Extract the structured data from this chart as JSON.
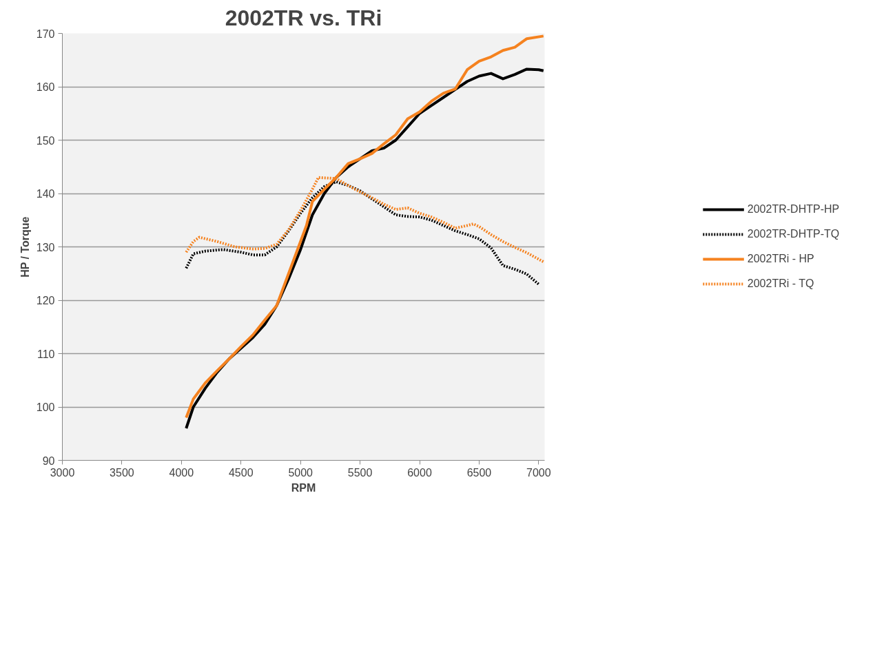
{
  "chart_data": {
    "type": "line",
    "title": "2002TR vs. TRi",
    "xlabel": "RPM",
    "ylabel": "HP / Torque",
    "xlim": [
      3000,
      7050
    ],
    "xticks": [
      3000,
      3500,
      4000,
      4500,
      5000,
      5500,
      6000,
      6500,
      7000
    ],
    "ylim": [
      90,
      170
    ],
    "yticks": [
      90,
      100,
      110,
      120,
      130,
      140,
      150,
      160,
      170
    ],
    "grid": "y",
    "legend": "right",
    "marker": "none",
    "series": [
      {
        "name": "2002TR-DHTP-HP",
        "color": "#000000",
        "line_style": "solid",
        "x": [
          4040,
          4100,
          4200,
          4300,
          4400,
          4500,
          4600,
          4700,
          4800,
          4900,
          5000,
          5100,
          5200,
          5300,
          5400,
          5500,
          5600,
          5700,
          5800,
          5900,
          6000,
          6100,
          6200,
          6300,
          6400,
          6500,
          6600,
          6700,
          6800,
          6900,
          7000,
          7040
        ],
        "values": [
          96,
          100,
          103.5,
          106.5,
          109,
          111,
          113,
          115.5,
          119,
          124,
          129.5,
          136,
          140,
          143,
          145,
          146.5,
          148,
          148.5,
          150,
          152.5,
          155,
          156.5,
          158,
          159.5,
          161,
          162,
          162.5,
          161.5,
          162.3,
          163.3,
          163.2,
          163
        ]
      },
      {
        "name": "2002TR-DHTP-TQ",
        "color": "#000000",
        "line_style": "dotted",
        "x": [
          4040,
          4100,
          4200,
          4350,
          4500,
          4600,
          4700,
          4800,
          4900,
          5000,
          5100,
          5200,
          5300,
          5400,
          5500,
          5600,
          5700,
          5800,
          5900,
          6000,
          6100,
          6200,
          6300,
          6400,
          6500,
          6600,
          6700,
          6800,
          6900,
          7000
        ],
        "values": [
          126,
          128.7,
          129.2,
          129.5,
          129,
          128.5,
          128.5,
          130,
          133,
          136.3,
          139.2,
          141.3,
          142.2,
          141.5,
          140.5,
          139,
          137.5,
          136,
          135.7,
          135.6,
          135,
          134,
          133,
          132.3,
          131.5,
          129.8,
          126.5,
          125.8,
          124.9,
          123
        ]
      },
      {
        "name": "2002TRi - HP",
        "color": "#f5821f",
        "line_style": "solid",
        "x": [
          4040,
          4100,
          4150,
          4200,
          4300,
          4400,
          4500,
          4600,
          4700,
          4800,
          4900,
          5000,
          5050,
          5100,
          5200,
          5300,
          5400,
          5500,
          5600,
          5700,
          5800,
          5900,
          6000,
          6100,
          6200,
          6300,
          6400,
          6500,
          6600,
          6700,
          6800,
          6900,
          7040
        ],
        "values": [
          98,
          101.5,
          103,
          104.5,
          106.8,
          109,
          111.3,
          113.5,
          116.3,
          119,
          125,
          131,
          134,
          138.5,
          140.8,
          143,
          145.6,
          146.5,
          147.5,
          149.3,
          151,
          154,
          155.3,
          157.3,
          158.8,
          159.6,
          163.2,
          164.8,
          165.6,
          166.8,
          167.4,
          169,
          169.5
        ]
      },
      {
        "name": "2002TRi - TQ",
        "color": "#f5821f",
        "line_style": "dotted",
        "x": [
          4040,
          4100,
          4150,
          4300,
          4450,
          4600,
          4700,
          4800,
          4900,
          5000,
          5100,
          5150,
          5300,
          5400,
          5500,
          5600,
          5700,
          5800,
          5900,
          6000,
          6100,
          6200,
          6300,
          6400,
          6450,
          6500,
          6600,
          6700,
          6800,
          6900,
          7040
        ],
        "values": [
          129,
          131,
          131.8,
          131,
          130,
          129.6,
          129.7,
          130.5,
          133.2,
          136.8,
          140.8,
          143,
          142.8,
          141.5,
          140.3,
          139.2,
          138,
          137,
          137.3,
          136.3,
          135.6,
          134.6,
          133.5,
          134,
          134.3,
          133.8,
          132.3,
          131,
          129.9,
          128.9,
          127.2
        ]
      }
    ]
  }
}
